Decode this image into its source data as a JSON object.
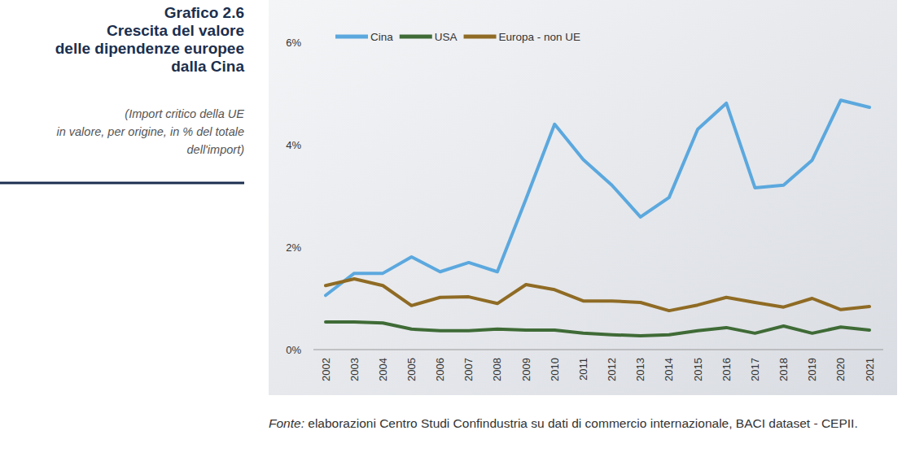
{
  "chart_data": {
    "type": "line",
    "title": "Grafico 2.6",
    "subtitle": [
      "Crescita del valore",
      "delle dipendenze europee",
      "dalla Cina"
    ],
    "note": [
      "(Import critico della UE",
      "in valore, per origine, in % del totale",
      "dell'import)"
    ],
    "source_label": "Fonte:",
    "source": "elaborazioni Centro Studi Confindustria su dati di commercio internazionale, BACI dataset - CEPII.",
    "categories": [
      "2002",
      "2003",
      "2004",
      "2005",
      "2006",
      "2007",
      "2008",
      "2009",
      "2010",
      "2011",
      "2012",
      "2013",
      "2014",
      "2015",
      "2016",
      "2017",
      "2018",
      "2019",
      "2020",
      "2021"
    ],
    "series": [
      {
        "name": "Cina",
        "color": "#5ba8de",
        "values": [
          1.06,
          1.49,
          1.49,
          1.81,
          1.52,
          1.7,
          1.52,
          2.94,
          4.4,
          3.71,
          3.21,
          2.59,
          2.97,
          4.3,
          4.81,
          3.16,
          3.21,
          3.7,
          4.87,
          4.73
        ]
      },
      {
        "name": "USA",
        "color": "#3f6b36",
        "values": [
          0.54,
          0.54,
          0.52,
          0.4,
          0.37,
          0.37,
          0.4,
          0.38,
          0.38,
          0.32,
          0.29,
          0.27,
          0.29,
          0.37,
          0.43,
          0.32,
          0.46,
          0.32,
          0.44,
          0.38
        ]
      },
      {
        "name": "Europa - non UE",
        "color": "#8f6b24",
        "values": [
          1.25,
          1.38,
          1.25,
          0.86,
          1.02,
          1.03,
          0.9,
          1.27,
          1.17,
          0.95,
          0.95,
          0.92,
          0.76,
          0.87,
          1.02,
          0.92,
          0.83,
          1.0,
          0.78,
          0.84
        ]
      }
    ],
    "ylim": [
      0,
      6
    ],
    "yticks": [
      {
        "value": 0,
        "label": "0%"
      },
      {
        "value": 2,
        "label": "2%"
      },
      {
        "value": 4,
        "label": "4%"
      },
      {
        "value": 6,
        "label": "6%"
      }
    ],
    "grid": false,
    "legend": "top-left"
  }
}
